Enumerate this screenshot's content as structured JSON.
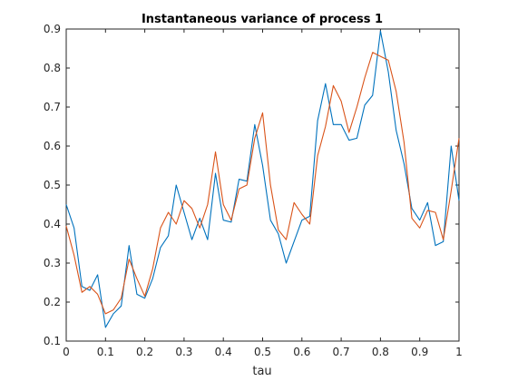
{
  "chart_data": {
    "type": "line",
    "title": "Instantaneous variance of process 1",
    "xlabel": "tau",
    "ylabel": "",
    "xlim": [
      0,
      1
    ],
    "ylim": [
      0.1,
      0.9
    ],
    "xticks": [
      "0",
      "0.1",
      "0.2",
      "0.3",
      "0.4",
      "0.5",
      "0.6",
      "0.7",
      "0.8",
      "0.9",
      "1"
    ],
    "yticks": [
      "0.1",
      "0.2",
      "0.3",
      "0.4",
      "0.5",
      "0.6",
      "0.7",
      "0.8",
      "0.9"
    ],
    "grid": false,
    "legend": "none",
    "series": [
      {
        "color": "#0072BD",
        "x": [
          0,
          0.02,
          0.04,
          0.06,
          0.08,
          0.1,
          0.12,
          0.14,
          0.16,
          0.18,
          0.2,
          0.22,
          0.24,
          0.26,
          0.28,
          0.3,
          0.32,
          0.34,
          0.36,
          0.38,
          0.4,
          0.42,
          0.44,
          0.46,
          0.48,
          0.5,
          0.52,
          0.54,
          0.56,
          0.58,
          0.6,
          0.62,
          0.64,
          0.66,
          0.68,
          0.7,
          0.72,
          0.74,
          0.76,
          0.78,
          0.8,
          0.82,
          0.84,
          0.86,
          0.88,
          0.9,
          0.92,
          0.94,
          0.96,
          0.98,
          1.0
        ],
        "values": [
          0.45,
          0.39,
          0.24,
          0.23,
          0.27,
          0.135,
          0.17,
          0.19,
          0.345,
          0.22,
          0.21,
          0.26,
          0.34,
          0.37,
          0.5,
          0.43,
          0.36,
          0.415,
          0.36,
          0.53,
          0.41,
          0.405,
          0.515,
          0.51,
          0.655,
          0.55,
          0.41,
          0.375,
          0.3,
          0.355,
          0.41,
          0.42,
          0.665,
          0.76,
          0.655,
          0.655,
          0.615,
          0.62,
          0.705,
          0.73,
          0.895,
          0.79,
          0.64,
          0.555,
          0.44,
          0.41,
          0.455,
          0.345,
          0.355,
          0.6,
          0.46
        ]
      },
      {
        "color": "#D95319",
        "x": [
          0,
          0.02,
          0.04,
          0.06,
          0.08,
          0.1,
          0.12,
          0.14,
          0.16,
          0.18,
          0.2,
          0.22,
          0.24,
          0.26,
          0.28,
          0.3,
          0.32,
          0.34,
          0.36,
          0.38,
          0.4,
          0.42,
          0.44,
          0.46,
          0.48,
          0.5,
          0.52,
          0.54,
          0.56,
          0.58,
          0.6,
          0.62,
          0.64,
          0.66,
          0.68,
          0.7,
          0.72,
          0.74,
          0.76,
          0.78,
          0.8,
          0.82,
          0.84,
          0.86,
          0.88,
          0.9,
          0.92,
          0.94,
          0.96,
          0.98,
          1.0
        ],
        "values": [
          0.395,
          0.32,
          0.225,
          0.24,
          0.22,
          0.17,
          0.18,
          0.21,
          0.31,
          0.26,
          0.215,
          0.285,
          0.39,
          0.43,
          0.4,
          0.46,
          0.44,
          0.39,
          0.45,
          0.585,
          0.45,
          0.41,
          0.49,
          0.5,
          0.62,
          0.685,
          0.5,
          0.385,
          0.36,
          0.455,
          0.425,
          0.4,
          0.575,
          0.65,
          0.755,
          0.715,
          0.635,
          0.7,
          0.775,
          0.84,
          0.83,
          0.82,
          0.74,
          0.61,
          0.415,
          0.39,
          0.435,
          0.43,
          0.36,
          0.485,
          0.62
        ]
      }
    ]
  }
}
